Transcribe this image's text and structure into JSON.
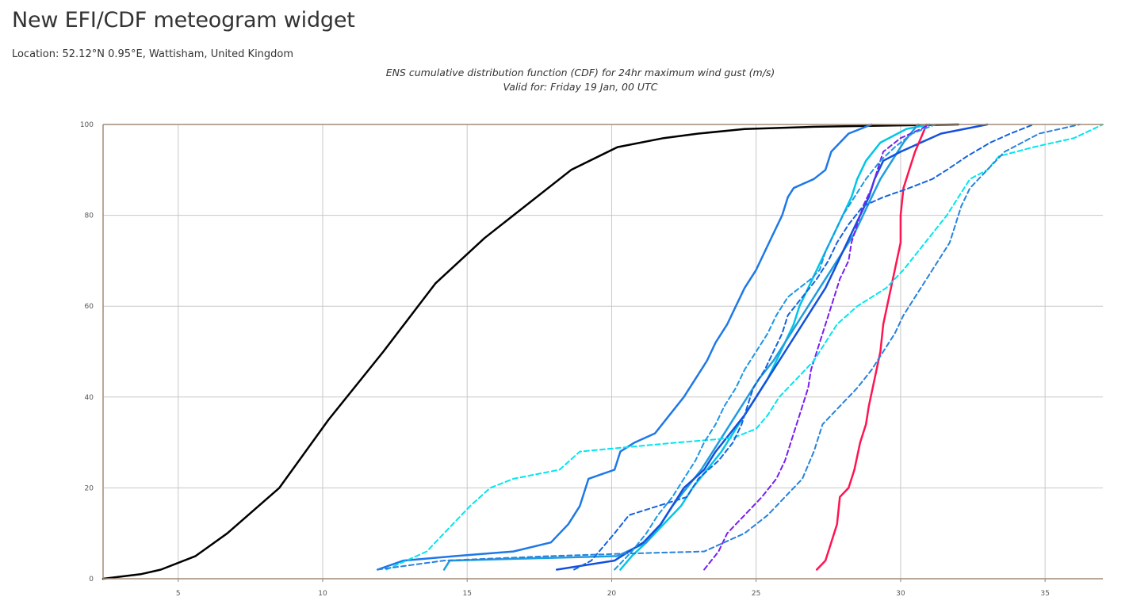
{
  "page": {
    "title": "New EFI/CDF meteogram widget",
    "location": "Location: 52.12°N 0.95°E, Wattisham, United Kingdom"
  },
  "chart_data": {
    "type": "line",
    "title": "ENS cumulative distribution function (CDF) for 24hr maximum wind gust (m/s)",
    "subtitle": "Valid for: Friday 19 Jan, 00 UTC",
    "xlabel": "",
    "ylabel": "",
    "xlim": [
      2.4,
      37
    ],
    "ylim": [
      0,
      100
    ],
    "xticks": [
      5,
      10,
      15,
      20,
      25,
      30,
      35
    ],
    "yticks": [
      0,
      20,
      40,
      60,
      80,
      100
    ],
    "grid": true,
    "legend": "none",
    "series": [
      {
        "color": "#000000",
        "dash": false,
        "points": [
          [
            2.4,
            0
          ],
          [
            3.7,
            1
          ],
          [
            4.4,
            2
          ],
          [
            5.6,
            5
          ],
          [
            6.7,
            10
          ],
          [
            8.5,
            20
          ],
          [
            10.2,
            35
          ],
          [
            12.1,
            50
          ],
          [
            13.9,
            65
          ],
          [
            15.6,
            75
          ],
          [
            18.6,
            90
          ],
          [
            20.2,
            95
          ],
          [
            21.8,
            97
          ],
          [
            23.0,
            98
          ],
          [
            24.6,
            99
          ],
          [
            27.0,
            99.5
          ],
          [
            32.0,
            100
          ]
        ]
      },
      {
        "color": "#1e78e8",
        "dash": false,
        "points": [
          [
            11.9,
            2
          ],
          [
            12.8,
            4
          ],
          [
            14.6,
            5
          ],
          [
            16.6,
            6
          ],
          [
            17.9,
            8
          ],
          [
            18.5,
            12
          ],
          [
            18.9,
            16
          ],
          [
            19.2,
            22
          ],
          [
            20.1,
            24
          ],
          [
            20.3,
            28
          ],
          [
            20.8,
            30
          ],
          [
            21.5,
            32
          ],
          [
            22.0,
            36
          ],
          [
            22.5,
            40
          ],
          [
            22.9,
            44
          ],
          [
            23.3,
            48
          ],
          [
            23.6,
            52
          ],
          [
            24.0,
            56
          ],
          [
            24.3,
            60
          ],
          [
            24.6,
            64
          ],
          [
            25.0,
            68
          ],
          [
            25.3,
            72
          ],
          [
            25.6,
            76
          ],
          [
            25.9,
            80
          ],
          [
            26.1,
            84
          ],
          [
            26.3,
            86
          ],
          [
            27.0,
            88
          ],
          [
            27.4,
            90
          ],
          [
            27.6,
            94
          ],
          [
            28.2,
            98
          ],
          [
            29.0,
            100
          ]
        ]
      },
      {
        "color": "#00c6e6",
        "dash": false,
        "points": [
          [
            20.3,
            2
          ],
          [
            20.7,
            5
          ],
          [
            21.2,
            8
          ],
          [
            21.8,
            12
          ],
          [
            22.4,
            16
          ],
          [
            22.8,
            20
          ],
          [
            23.3,
            24
          ],
          [
            23.8,
            28
          ],
          [
            24.2,
            32
          ],
          [
            24.6,
            36
          ],
          [
            25.0,
            40
          ],
          [
            25.4,
            44
          ],
          [
            25.7,
            48
          ],
          [
            26.0,
            52
          ],
          [
            26.3,
            56
          ],
          [
            26.5,
            60
          ],
          [
            26.8,
            64
          ],
          [
            27.1,
            68
          ],
          [
            27.4,
            72
          ],
          [
            27.7,
            76
          ],
          [
            28.0,
            80
          ],
          [
            28.3,
            84
          ],
          [
            28.5,
            88
          ],
          [
            28.8,
            92
          ],
          [
            29.3,
            96
          ],
          [
            30.2,
            99
          ],
          [
            31.0,
            100
          ]
        ]
      },
      {
        "color": "#1f9de0",
        "dash": false,
        "points": [
          [
            14.2,
            2
          ],
          [
            14.4,
            4
          ],
          [
            20.2,
            5
          ],
          [
            21.2,
            8
          ],
          [
            21.7,
            12
          ],
          [
            22.1,
            16
          ],
          [
            22.6,
            20
          ],
          [
            23.1,
            24
          ],
          [
            23.5,
            28
          ],
          [
            23.9,
            32
          ],
          [
            24.3,
            36
          ],
          [
            24.7,
            40
          ],
          [
            25.1,
            44
          ],
          [
            25.6,
            48
          ],
          [
            26.0,
            52
          ],
          [
            26.4,
            56
          ],
          [
            26.8,
            60
          ],
          [
            27.2,
            64
          ],
          [
            27.6,
            68
          ],
          [
            28.0,
            72
          ],
          [
            28.4,
            76
          ],
          [
            28.7,
            80
          ],
          [
            29.0,
            84
          ],
          [
            29.3,
            88
          ],
          [
            29.7,
            92
          ],
          [
            30.1,
            96
          ],
          [
            30.6,
            100
          ]
        ]
      },
      {
        "color": "#1450dc",
        "dash": false,
        "points": [
          [
            18.1,
            2
          ],
          [
            20.1,
            4
          ],
          [
            21.1,
            8
          ],
          [
            21.7,
            12
          ],
          [
            22.1,
            16
          ],
          [
            22.5,
            20
          ],
          [
            23.2,
            24
          ],
          [
            23.6,
            28
          ],
          [
            24.1,
            32
          ],
          [
            24.6,
            36
          ],
          [
            25.0,
            40
          ],
          [
            25.4,
            44
          ],
          [
            25.8,
            48
          ],
          [
            26.2,
            52
          ],
          [
            26.6,
            56
          ],
          [
            27.0,
            60
          ],
          [
            27.4,
            64
          ],
          [
            27.7,
            68
          ],
          [
            28.0,
            72
          ],
          [
            28.3,
            76
          ],
          [
            28.6,
            80
          ],
          [
            28.9,
            84
          ],
          [
            29.1,
            88
          ],
          [
            29.4,
            92
          ],
          [
            30.0,
            94
          ],
          [
            30.7,
            96
          ],
          [
            31.4,
            98
          ],
          [
            33.0,
            100
          ]
        ]
      },
      {
        "color": "#ff1450",
        "dash": false,
        "points": [
          [
            27.1,
            2
          ],
          [
            27.4,
            4
          ],
          [
            27.6,
            8
          ],
          [
            27.8,
            12
          ],
          [
            27.9,
            18
          ],
          [
            28.2,
            20
          ],
          [
            28.4,
            24
          ],
          [
            28.6,
            30
          ],
          [
            28.8,
            34
          ],
          [
            28.9,
            38
          ],
          [
            29.1,
            44
          ],
          [
            29.3,
            50
          ],
          [
            29.4,
            56
          ],
          [
            29.6,
            62
          ],
          [
            29.8,
            68
          ],
          [
            30.0,
            74
          ],
          [
            30.0,
            80
          ],
          [
            30.1,
            86
          ],
          [
            30.3,
            90
          ],
          [
            30.5,
            94
          ],
          [
            30.7,
            97
          ],
          [
            30.9,
            100
          ]
        ]
      },
      {
        "color": "#7a1ef0",
        "dash": true,
        "points": [
          [
            23.2,
            2
          ],
          [
            23.7,
            6
          ],
          [
            24.0,
            10
          ],
          [
            24.6,
            14
          ],
          [
            25.2,
            18
          ],
          [
            25.7,
            22
          ],
          [
            26.0,
            26
          ],
          [
            26.2,
            30
          ],
          [
            26.4,
            34
          ],
          [
            26.6,
            38
          ],
          [
            26.8,
            42
          ],
          [
            26.9,
            46
          ],
          [
            27.1,
            50
          ],
          [
            27.3,
            54
          ],
          [
            27.5,
            58
          ],
          [
            27.7,
            62
          ],
          [
            27.9,
            66
          ],
          [
            28.2,
            70
          ],
          [
            28.3,
            74
          ],
          [
            28.5,
            78
          ],
          [
            28.7,
            82
          ],
          [
            29.0,
            86
          ],
          [
            29.2,
            90
          ],
          [
            29.4,
            94
          ],
          [
            30.0,
            97
          ],
          [
            30.7,
            99
          ],
          [
            31.0,
            100
          ]
        ]
      },
      {
        "color": "#00e6f0",
        "dash": true,
        "points": [
          [
            12.2,
            2
          ],
          [
            13.6,
            6
          ],
          [
            14.2,
            10
          ],
          [
            15.1,
            16
          ],
          [
            15.8,
            20
          ],
          [
            16.6,
            22
          ],
          [
            18.2,
            24
          ],
          [
            18.9,
            28
          ],
          [
            20.6,
            29
          ],
          [
            22.3,
            30
          ],
          [
            24.2,
            31
          ],
          [
            25.0,
            33
          ],
          [
            25.4,
            36
          ],
          [
            25.8,
            40
          ],
          [
            26.4,
            44
          ],
          [
            27.0,
            48
          ],
          [
            27.4,
            52
          ],
          [
            27.8,
            56
          ],
          [
            28.5,
            60
          ],
          [
            29.5,
            64
          ],
          [
            30.1,
            68
          ],
          [
            30.6,
            72
          ],
          [
            31.1,
            76
          ],
          [
            31.6,
            80
          ],
          [
            32.0,
            84
          ],
          [
            32.4,
            88
          ],
          [
            33.0,
            90
          ],
          [
            33.4,
            93
          ],
          [
            34.6,
            95
          ],
          [
            36.0,
            97
          ],
          [
            37.0,
            100
          ]
        ]
      },
      {
        "color": "#1e96e6",
        "dash": true,
        "points": [
          [
            20.1,
            2
          ],
          [
            20.7,
            6
          ],
          [
            21.2,
            10
          ],
          [
            21.6,
            14
          ],
          [
            22.1,
            18
          ],
          [
            22.5,
            22
          ],
          [
            22.9,
            26
          ],
          [
            23.2,
            30
          ],
          [
            23.6,
            34
          ],
          [
            23.9,
            38
          ],
          [
            24.3,
            42
          ],
          [
            24.6,
            46
          ],
          [
            25.0,
            50
          ],
          [
            25.4,
            54
          ],
          [
            25.7,
            58
          ],
          [
            26.1,
            62
          ],
          [
            26.5,
            64
          ],
          [
            26.9,
            66
          ],
          [
            27.2,
            68
          ],
          [
            27.4,
            72
          ],
          [
            27.7,
            76
          ],
          [
            28.0,
            80
          ],
          [
            28.4,
            84
          ],
          [
            28.8,
            88
          ],
          [
            29.3,
            92
          ],
          [
            29.8,
            95
          ],
          [
            30.4,
            98
          ],
          [
            31.2,
            100
          ]
        ]
      },
      {
        "color": "#1462e0",
        "dash": true,
        "points": [
          [
            18.7,
            2
          ],
          [
            19.3,
            4
          ],
          [
            20.1,
            10
          ],
          [
            20.6,
            14
          ],
          [
            21.6,
            16
          ],
          [
            22.6,
            18
          ],
          [
            23.0,
            22
          ],
          [
            23.7,
            26
          ],
          [
            24.2,
            30
          ],
          [
            24.5,
            34
          ],
          [
            24.7,
            38
          ],
          [
            24.9,
            42
          ],
          [
            25.3,
            46
          ],
          [
            25.6,
            50
          ],
          [
            25.9,
            54
          ],
          [
            26.1,
            58
          ],
          [
            26.6,
            62
          ],
          [
            27.1,
            66
          ],
          [
            27.5,
            70
          ],
          [
            27.8,
            74
          ],
          [
            28.2,
            78
          ],
          [
            28.7,
            82
          ],
          [
            29.4,
            84
          ],
          [
            30.3,
            86
          ],
          [
            31.1,
            88
          ],
          [
            31.6,
            90
          ],
          [
            32.3,
            93
          ],
          [
            33.1,
            96
          ],
          [
            33.8,
            98
          ],
          [
            34.6,
            100
          ]
        ]
      },
      {
        "color": "#2882dc",
        "dash": true,
        "points": [
          [
            11.9,
            2
          ],
          [
            14.2,
            4
          ],
          [
            17.9,
            5
          ],
          [
            20.3,
            5.5
          ],
          [
            23.2,
            6
          ],
          [
            24.6,
            10
          ],
          [
            25.4,
            14
          ],
          [
            26.0,
            18
          ],
          [
            26.6,
            22
          ],
          [
            27.0,
            28
          ],
          [
            27.3,
            34
          ],
          [
            27.9,
            38
          ],
          [
            28.5,
            42
          ],
          [
            29.0,
            46
          ],
          [
            29.4,
            50
          ],
          [
            29.8,
            54
          ],
          [
            30.1,
            58
          ],
          [
            30.5,
            62
          ],
          [
            30.9,
            66
          ],
          [
            31.3,
            70
          ],
          [
            31.7,
            74
          ],
          [
            31.9,
            78
          ],
          [
            32.1,
            82
          ],
          [
            32.4,
            86
          ],
          [
            33.0,
            90
          ],
          [
            33.6,
            94
          ],
          [
            34.8,
            98
          ],
          [
            36.2,
            100
          ]
        ]
      }
    ]
  }
}
